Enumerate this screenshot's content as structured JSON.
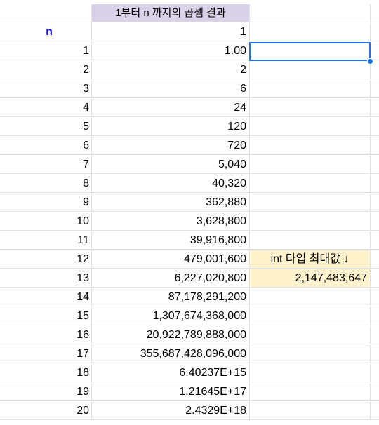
{
  "sheet": {
    "header_title": "1부터 n 까지의 곱셈 결과",
    "n_label": "n",
    "zero_value": "1",
    "rows": [
      {
        "n": "1",
        "value": "1.00"
      },
      {
        "n": "2",
        "value": "2"
      },
      {
        "n": "3",
        "value": "6"
      },
      {
        "n": "4",
        "value": "24"
      },
      {
        "n": "5",
        "value": "120"
      },
      {
        "n": "6",
        "value": "720"
      },
      {
        "n": "7",
        "value": "5,040"
      },
      {
        "n": "8",
        "value": "40,320"
      },
      {
        "n": "9",
        "value": "362,880"
      },
      {
        "n": "10",
        "value": "3,628,800"
      },
      {
        "n": "11",
        "value": "39,916,800"
      },
      {
        "n": "12",
        "value": "479,001,600"
      },
      {
        "n": "13",
        "value": "6,227,020,800"
      },
      {
        "n": "14",
        "value": "87,178,291,200"
      },
      {
        "n": "15",
        "value": "1,307,674,368,000"
      },
      {
        "n": "16",
        "value": "20,922,789,888,000"
      },
      {
        "n": "17",
        "value": "355,687,428,096,000"
      },
      {
        "n": "18",
        "value": "6.40237E+15"
      },
      {
        "n": "19",
        "value": "1.21645E+17"
      },
      {
        "n": "20",
        "value": "2.4329E+18"
      }
    ],
    "note_title": "int 타입 최대값 ↓",
    "note_value": "2,147,483,647"
  },
  "colors": {
    "header_bg": "#d9d2e9",
    "note_bg": "#fff2cc",
    "n_label": "#1a15c9",
    "selection": "#1a73e8",
    "gridline": "#e2e2e2"
  }
}
